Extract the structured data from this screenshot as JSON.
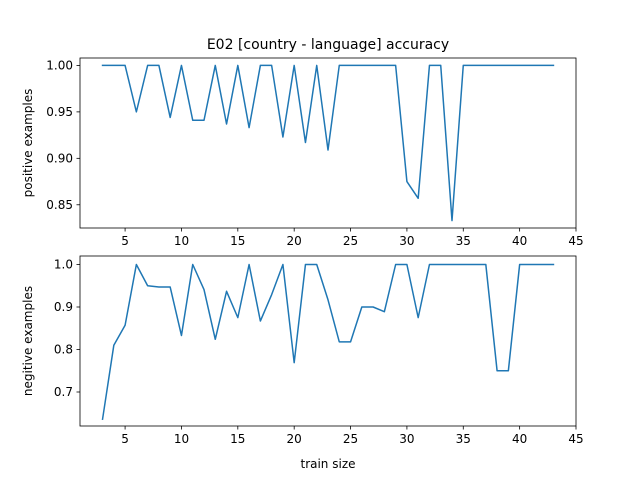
{
  "title": "E02 [country - language] accuracy",
  "line_color": "#1f77b4",
  "chart_data": [
    {
      "type": "line",
      "title": "E02 [country - language] accuracy",
      "xlabel": "",
      "ylabel": "positive examples",
      "xlim": [
        1,
        45
      ],
      "ylim": [
        0.825,
        1.008
      ],
      "xticks": [
        5,
        10,
        15,
        20,
        25,
        30,
        35,
        40,
        45
      ],
      "yticks": [
        0.85,
        0.9,
        0.95,
        1.0
      ],
      "ytick_labels": [
        "0.85",
        "0.90",
        "0.95",
        "1.00"
      ],
      "grid": false,
      "x": [
        3,
        4,
        5,
        6,
        7,
        8,
        9,
        10,
        11,
        12,
        13,
        14,
        15,
        16,
        17,
        18,
        19,
        20,
        21,
        22,
        23,
        24,
        25,
        26,
        27,
        28,
        29,
        30,
        31,
        32,
        33,
        34,
        35,
        36,
        37,
        38,
        39,
        40,
        41,
        42,
        43
      ],
      "y": [
        1.0,
        1.0,
        1.0,
        0.95,
        1.0,
        1.0,
        0.944,
        1.0,
        0.941,
        0.941,
        1.0,
        0.937,
        1.0,
        0.933,
        1.0,
        1.0,
        0.923,
        1.0,
        0.917,
        1.0,
        0.909,
        1.0,
        1.0,
        1.0,
        1.0,
        1.0,
        1.0,
        0.875,
        0.857,
        1.0,
        1.0,
        0.833,
        1.0,
        1.0,
        1.0,
        1.0,
        1.0,
        1.0,
        1.0,
        1.0,
        1.0
      ]
    },
    {
      "type": "line",
      "title": "",
      "xlabel": "train size",
      "ylabel": "negitive examples",
      "xlim": [
        1,
        45
      ],
      "ylim": [
        0.62,
        1.02
      ],
      "xticks": [
        5,
        10,
        15,
        20,
        25,
        30,
        35,
        40,
        45
      ],
      "yticks": [
        0.7,
        0.8,
        0.9,
        1.0
      ],
      "ytick_labels": [
        "0.7",
        "0.8",
        "0.9",
        "1.0"
      ],
      "grid": false,
      "x": [
        3,
        4,
        5,
        6,
        7,
        8,
        9,
        10,
        11,
        12,
        13,
        14,
        15,
        16,
        17,
        18,
        19,
        20,
        21,
        22,
        23,
        24,
        25,
        26,
        27,
        28,
        29,
        30,
        31,
        32,
        33,
        34,
        35,
        36,
        37,
        38,
        39,
        40,
        41,
        42,
        43
      ],
      "y": [
        0.636,
        0.81,
        0.857,
        1.0,
        0.95,
        0.947,
        0.947,
        0.833,
        1.0,
        0.941,
        0.824,
        0.937,
        0.875,
        1.0,
        0.867,
        0.929,
        1.0,
        0.769,
        1.0,
        1.0,
        0.917,
        0.818,
        0.818,
        0.9,
        0.9,
        0.889,
        1.0,
        1.0,
        0.875,
        1.0,
        1.0,
        1.0,
        1.0,
        1.0,
        1.0,
        0.75,
        0.75,
        1.0,
        1.0,
        1.0,
        1.0
      ]
    }
  ]
}
